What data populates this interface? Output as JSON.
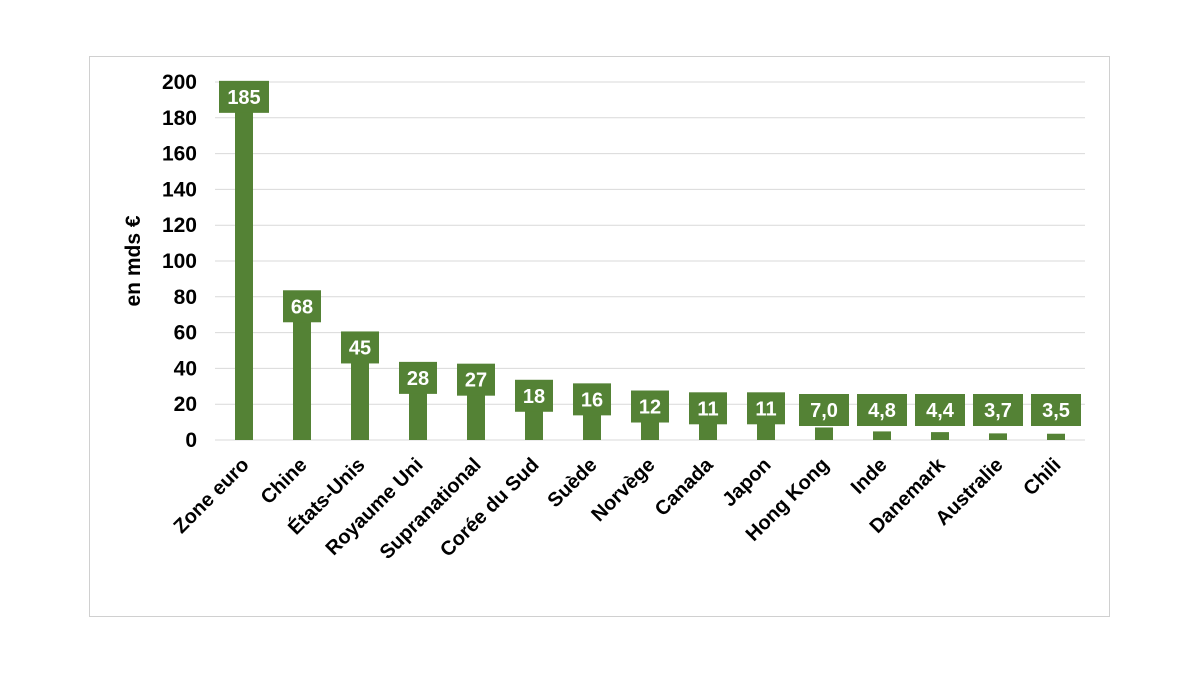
{
  "chart_data": {
    "type": "bar",
    "ylabel": "en mds €",
    "ylim": [
      0,
      200
    ],
    "ytick_step": 20,
    "grid": true,
    "bar_color": "#548235",
    "categories": [
      "Zone euro",
      "Chine",
      "États-Unis",
      "Royaume Uni",
      "Supranational",
      "Corée du Sud",
      "Suède",
      "Norvège",
      "Canada",
      "Japon",
      "Hong Kong",
      "Inde",
      "Danemark",
      "Australie",
      "Chili"
    ],
    "values": [
      185,
      68,
      45,
      28,
      27,
      18,
      16,
      12,
      11,
      11,
      7.0,
      4.8,
      4.4,
      3.7,
      3.5
    ],
    "data_labels": [
      "185",
      "68",
      "45",
      "28",
      "27",
      "18",
      "16",
      "12",
      "11",
      "11",
      "7,0",
      "4,8",
      "4,4",
      "3,7",
      "3,5"
    ]
  }
}
